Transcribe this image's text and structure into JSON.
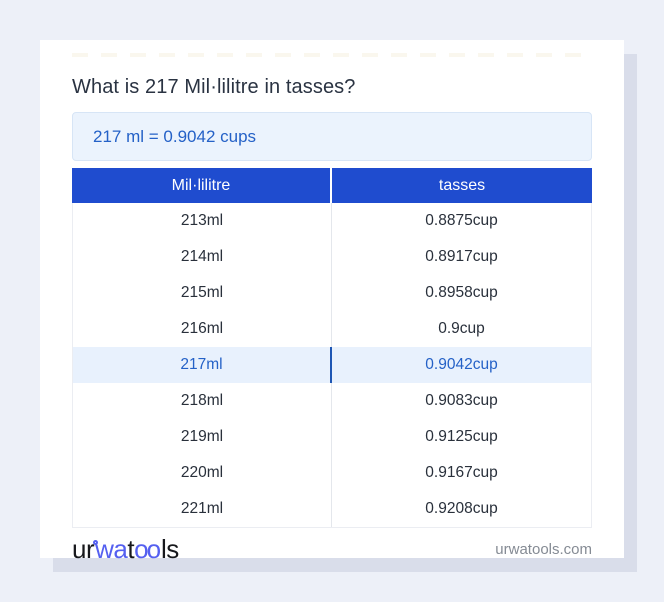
{
  "title": "What is 217 Mil·lilitre in tasses?",
  "result": "217 ml = 0.9042 cups",
  "table": {
    "headers": [
      "Mil·lilitre",
      "tasses"
    ],
    "rows": [
      {
        "value": "213ml",
        "converted": "0.8875cup",
        "highlighted": false
      },
      {
        "value": "214ml",
        "converted": "0.8917cup",
        "highlighted": false
      },
      {
        "value": "215ml",
        "converted": "0.8958cup",
        "highlighted": false
      },
      {
        "value": "216ml",
        "converted": "0.9cup",
        "highlighted": false
      },
      {
        "value": "217ml",
        "converted": "0.9042cup",
        "highlighted": true
      },
      {
        "value": "218ml",
        "converted": "0.9083cup",
        "highlighted": false
      },
      {
        "value": "219ml",
        "converted": "0.9125cup",
        "highlighted": false
      },
      {
        "value": "220ml",
        "converted": "0.9167cup",
        "highlighted": false
      },
      {
        "value": "221ml",
        "converted": "0.9208cup",
        "highlighted": false
      }
    ]
  },
  "footer": {
    "logo": {
      "prefix": "ur",
      "accent1": "wa",
      "mid": "t",
      "accent2": "oo",
      "suffix": "ls"
    },
    "domain": "urwatools.com"
  },
  "colors": {
    "page_bg": "#edf0f8",
    "card_bg": "#ffffff",
    "card_shadow": "#d9ddea",
    "title_text": "#2a3342",
    "result_bg": "#ebf3fd",
    "result_border": "#d7e5f6",
    "accent_blue": "#2461c7",
    "header_bg": "#1f4ccf",
    "header_text": "#ffffff",
    "cell_text": "#29303b",
    "highlight_bg": "#e8f1fd",
    "highlight_divider": "#1e56b4",
    "table_border": "#ebedf2",
    "divider": "#e4e7ec",
    "footer_domain_text": "#858b94",
    "logo_dark": "#17181c",
    "logo_blue": "#5560f0"
  }
}
